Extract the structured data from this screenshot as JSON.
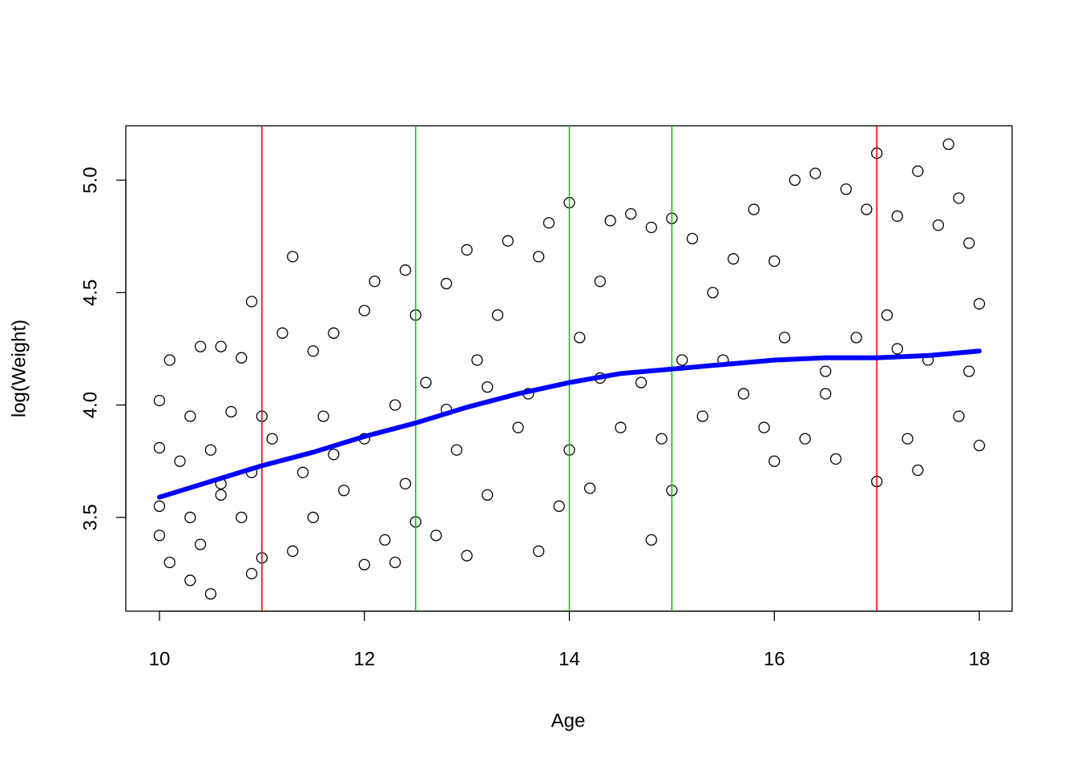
{
  "chart_data": {
    "type": "scatter",
    "xlabel": "Age",
    "ylabel": "log(Weight)",
    "xlim": [
      9.672,
      18.32
    ],
    "ylim": [
      3.083,
      5.242
    ],
    "xticks": [
      10,
      12,
      14,
      16,
      18
    ],
    "yticks": [
      3.5,
      {
        "value": 4,
        "label": "4.0"
      },
      4.5,
      {
        "value": 5,
        "label": "5.0"
      }
    ],
    "point_color": "#000000",
    "x": [
      10,
      10,
      10,
      10,
      10.1,
      10.1,
      10.2,
      10.3,
      10.3,
      10.3,
      10.4,
      10.4,
      10.5,
      10.5,
      10.6,
      10.6,
      10.7,
      10.8,
      10.8,
      10.9,
      10.9,
      10.9,
      11,
      11,
      11.1,
      11.2,
      11.3,
      11.3,
      11.4,
      11.5,
      11.5,
      11.6,
      11.7,
      11.8,
      12,
      12,
      12,
      12.1,
      12.2,
      12.3,
      12.3,
      12.4,
      12.4,
      12.5,
      12.5,
      12.6,
      12.7,
      12.8,
      12.9,
      13,
      13,
      13.1,
      13.2,
      13.3,
      13.4,
      13.5,
      13.6,
      13.7,
      13.7,
      13.8,
      13.9,
      14,
      14,
      14.1,
      14.2,
      14.3,
      14.4,
      14.5,
      14.6,
      14.7,
      14.8,
      14.8,
      14.9,
      15,
      15,
      15.1,
      15.2,
      15.3,
      15.4,
      15.6,
      15.7,
      15.8,
      15.9,
      16,
      16,
      16.1,
      16.2,
      16.3,
      16.4,
      16.5,
      16.6,
      16.7,
      16.8,
      16.9,
      17,
      17,
      17.1,
      17.2,
      17.3,
      17.4,
      17.4,
      17.5,
      17.6,
      17.7,
      17.8,
      17.8,
      17.9,
      17.9,
      18,
      18,
      12.8,
      13.2,
      14.3,
      15.5,
      16.5,
      17.2,
      11.7,
      10.6
    ],
    "values": [
      4.02,
      3.81,
      3.55,
      3.42,
      4.2,
      3.3,
      3.75,
      3.22,
      3.95,
      3.5,
      4.26,
      3.38,
      3.16,
      3.8,
      4.26,
      3.6,
      3.97,
      3.5,
      4.21,
      4.46,
      3.25,
      3.7,
      3.95,
      3.32,
      3.85,
      4.32,
      4.66,
      3.35,
      3.7,
      4.24,
      3.5,
      3.95,
      4.32,
      3.62,
      4.42,
      3.29,
      3.85,
      4.55,
      3.4,
      4,
      3.3,
      4.6,
      3.65,
      4.4,
      3.48,
      4.1,
      3.42,
      4.54,
      3.8,
      4.69,
      3.33,
      4.2,
      3.6,
      4.4,
      4.73,
      3.9,
      4.05,
      3.35,
      4.66,
      4.81,
      3.55,
      4.9,
      3.8,
      4.3,
      3.63,
      4.55,
      4.82,
      3.9,
      4.85,
      4.1,
      3.4,
      4.79,
      3.85,
      4.83,
      3.62,
      4.2,
      4.74,
      3.95,
      4.5,
      4.65,
      4.05,
      4.87,
      3.9,
      4.64,
      3.75,
      4.3,
      5,
      3.85,
      5.03,
      4.15,
      3.76,
      4.96,
      4.3,
      4.87,
      5.12,
      3.66,
      4.4,
      4.84,
      3.85,
      5.04,
      3.71,
      4.2,
      4.8,
      5.16,
      4.92,
      3.95,
      4.72,
      4.15,
      4.45,
      3.82,
      3.98,
      4.08,
      4.12,
      4.2,
      4.05,
      4.25,
      3.78,
      3.65
    ],
    "smooth": {
      "color": "#0000ff",
      "x": [
        10,
        10.5,
        11,
        11.5,
        12,
        12.5,
        13,
        13.5,
        14,
        14.5,
        15,
        15.5,
        16,
        16.5,
        17,
        17.5,
        18
      ],
      "values": [
        3.59,
        3.66,
        3.73,
        3.79,
        3.86,
        3.92,
        3.99,
        4.05,
        4.1,
        4.14,
        4.16,
        4.18,
        4.2,
        4.21,
        4.21,
        4.22,
        4.24
      ]
    },
    "vlines": [
      {
        "value": 11,
        "color": "#ff0000"
      },
      {
        "value": 12.5,
        "color": "#00cc00"
      },
      {
        "value": 14,
        "color": "#00cc00"
      },
      {
        "value": 15,
        "color": "#00cc00"
      },
      {
        "value": 17,
        "color": "#ff0000"
      }
    ]
  }
}
